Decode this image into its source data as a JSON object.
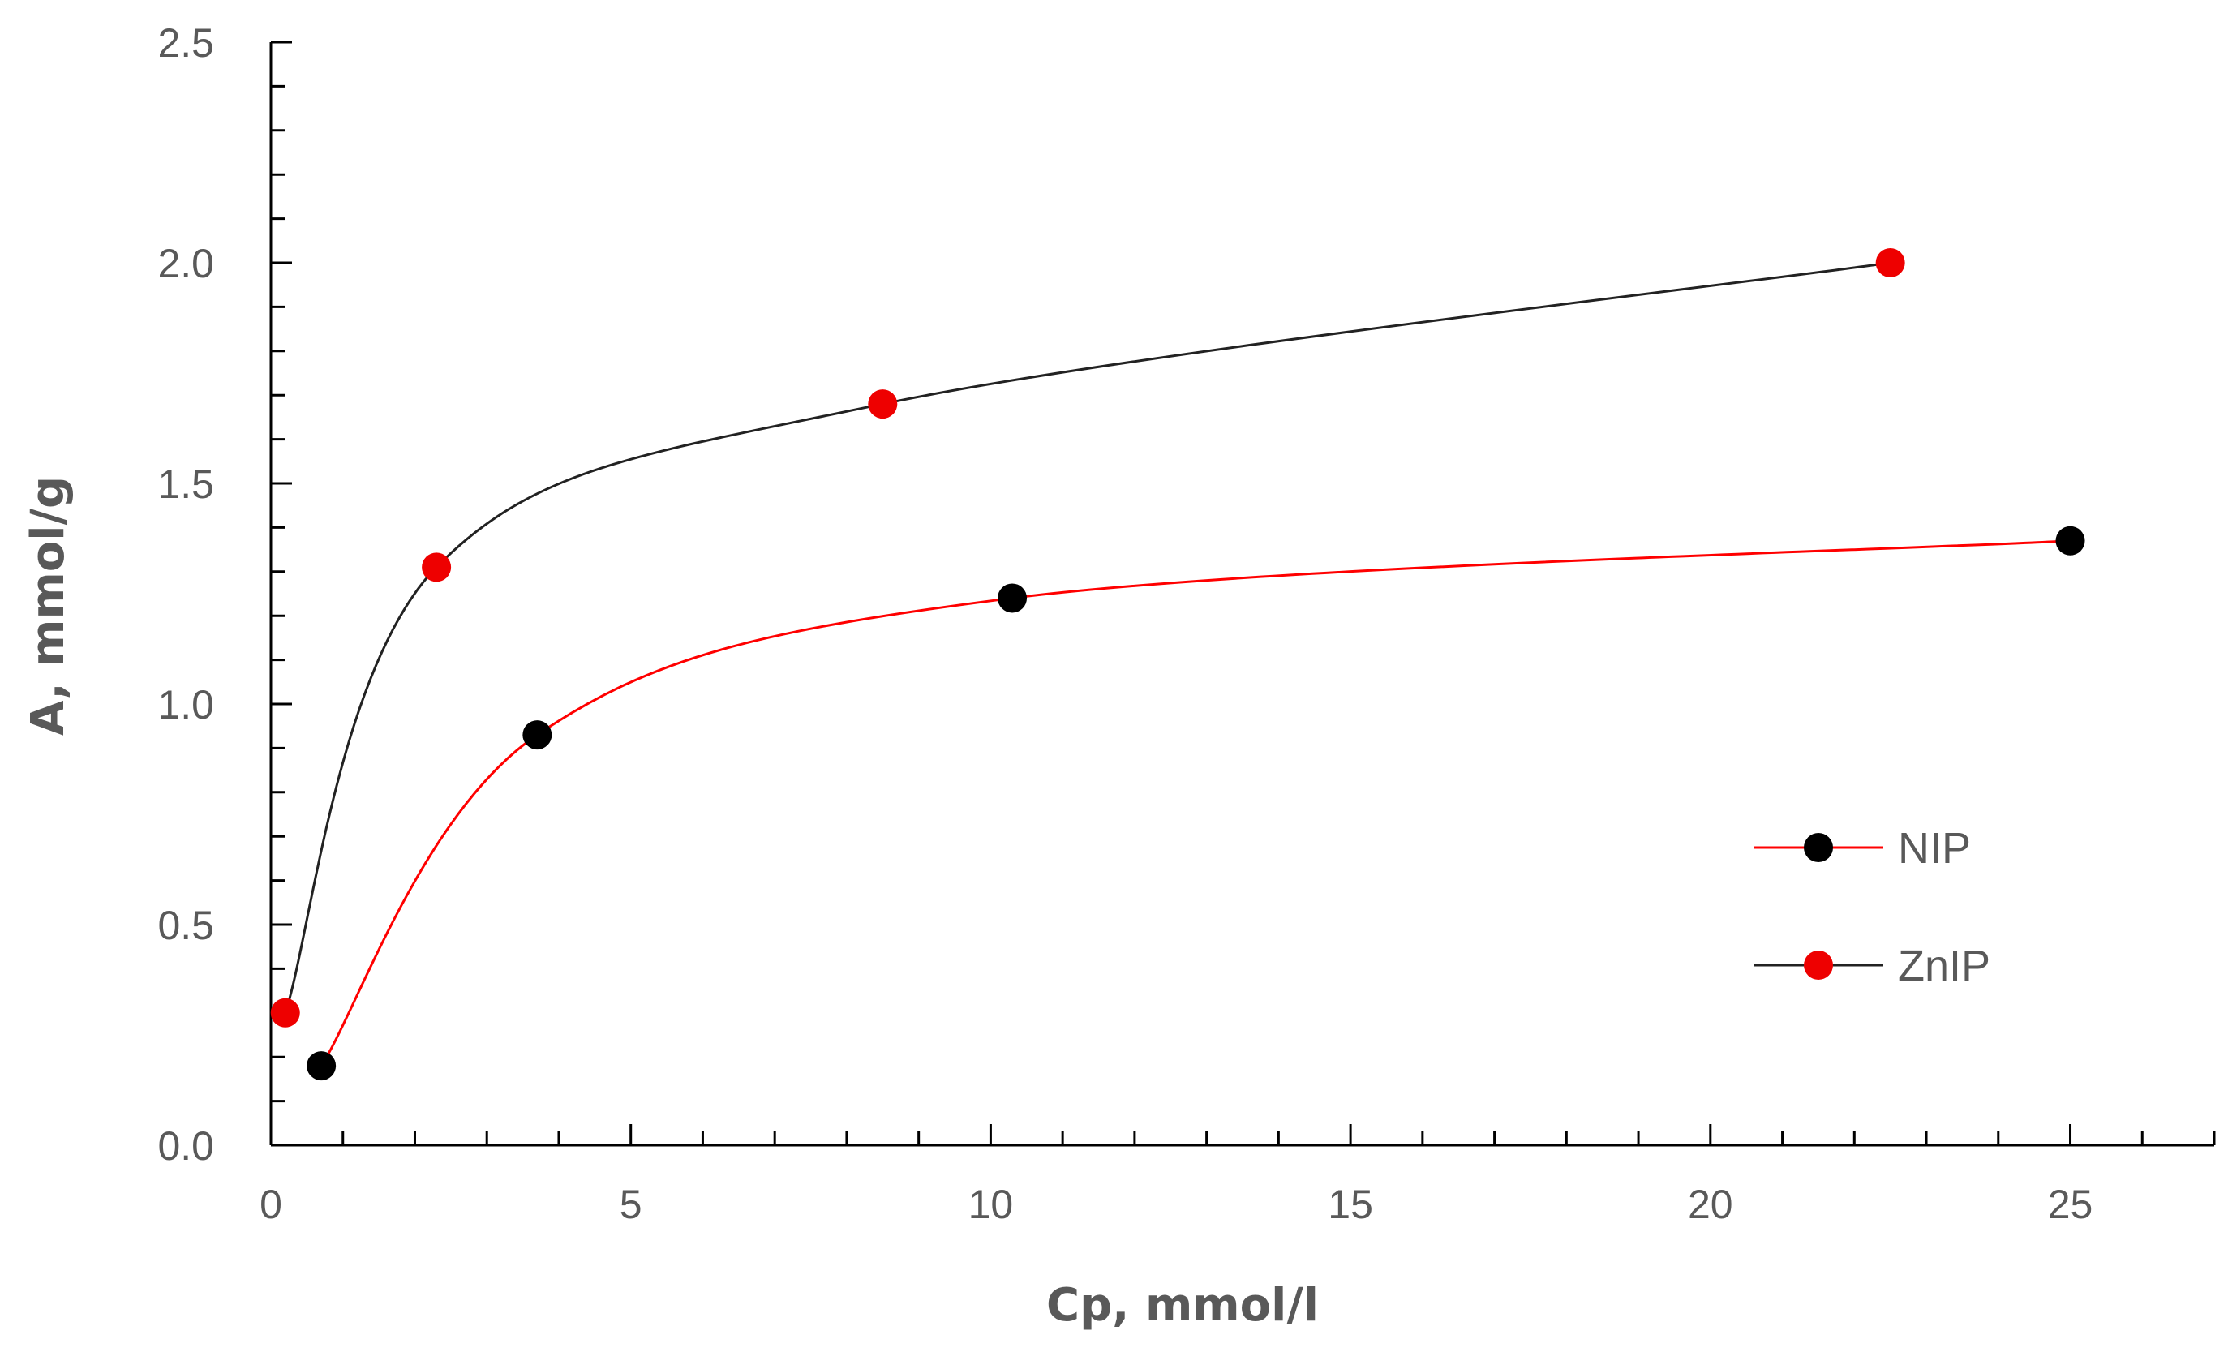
{
  "chart_data": {
    "type": "scatter",
    "title": "",
    "xlabel": "Cp, mmol/l",
    "ylabel": "A, mmol/g",
    "xlim": [
      0,
      27
    ],
    "ylim": [
      0,
      2.5
    ],
    "x_ticks": [
      "0",
      "5",
      "10",
      "15",
      "20",
      "25"
    ],
    "y_ticks": [
      "0.0",
      "0.5",
      "1.0",
      "1.5",
      "2.0",
      "2.5"
    ],
    "grid": false,
    "legend_position": "right-middle",
    "series": [
      {
        "name": "NIP",
        "marker_color": "#000000",
        "line_color": "#ff0000",
        "x": [
          0.7,
          3.7,
          10.3,
          25.0
        ],
        "y": [
          0.18,
          0.93,
          1.24,
          1.37
        ]
      },
      {
        "name": "ZnIP",
        "marker_color": "#ee0000",
        "line_color": "#222222",
        "x": [
          0.2,
          2.3,
          8.5,
          22.5
        ],
        "y": [
          0.3,
          1.31,
          1.68,
          2.0
        ]
      }
    ]
  }
}
